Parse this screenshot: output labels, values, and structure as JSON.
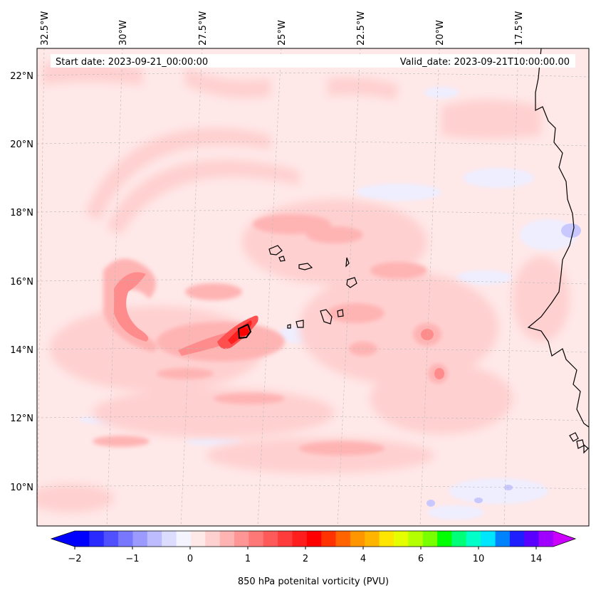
{
  "header": {
    "start_date": "Start date: 2023-09-21_00:00:00",
    "valid_date": "Valid_date: 2023-09-21T10:00:00.00"
  },
  "map": {
    "lon_labels": [
      "32.5°W",
      "30°W",
      "27.5°W",
      "25°W",
      "22.5°W",
      "20°W",
      "17.5°W"
    ],
    "lat_labels": [
      "22°N",
      "20°N",
      "18°N",
      "16°N",
      "14°N",
      "12°N",
      "10°N"
    ],
    "background_color": "#ffe8e8",
    "coastline_color": "#000000"
  },
  "colorbar": {
    "label": "850 hPa potenital vorticity (PVU)",
    "tick_labels": [
      "−2",
      "−1",
      "0",
      "1",
      "2",
      "4",
      "6",
      "10",
      "14"
    ],
    "colors": [
      "#0000ff",
      "#2a2aff",
      "#5050ff",
      "#7878ff",
      "#9a9aff",
      "#bcbcff",
      "#dcdcff",
      "#f4f4ff",
      "#ffe8e8",
      "#ffd0d0",
      "#ffb4b4",
      "#ff9696",
      "#ff7878",
      "#ff5a5a",
      "#ff3c3c",
      "#ff1e1e",
      "#ff0000",
      "#ff3200",
      "#ff6400",
      "#ff9600",
      "#ffb400",
      "#ffe600",
      "#e6ff00",
      "#b4ff00",
      "#78ff00",
      "#00ff00",
      "#00ff78",
      "#00ffc8",
      "#00e6ff",
      "#0082ff",
      "#1e1eff",
      "#5a00ff",
      "#a000ff"
    ],
    "extend_low_color": "#0000ff",
    "extend_high_color": "#cc00ff"
  }
}
